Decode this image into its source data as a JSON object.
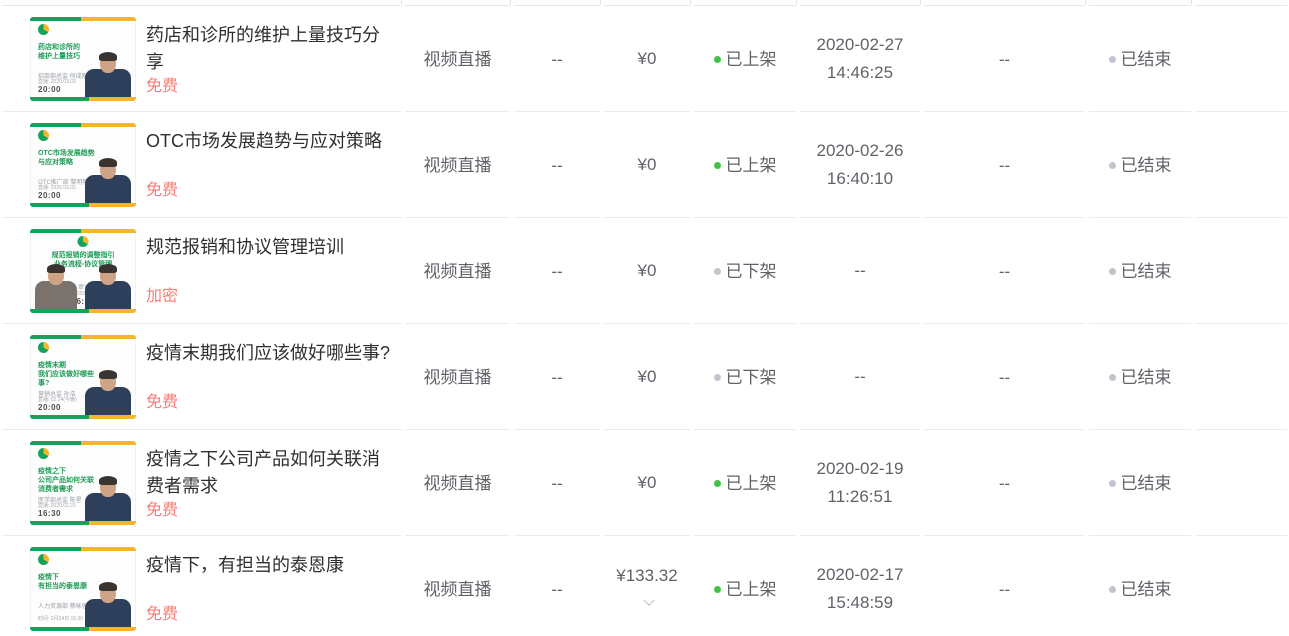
{
  "colors": {
    "accent_green": "#15a35b",
    "accent_yellow": "#f7b52c",
    "status_on_green": "#41c341",
    "status_off_gray": "#c0c4cc",
    "access_label_red": "#f97c78",
    "title_text": "#2f2f2f",
    "body_text": "#5f6368",
    "divider": "#ececec"
  },
  "table": {
    "rows": [
      {
        "thumbnail": {
          "title_lines": [
            "药店和诊所的",
            "维护上量技巧"
          ],
          "subtitle": "招商部总监 何成刚",
          "footer": "直播: 2020.03.03",
          "time": "20:00",
          "logo_position": "left",
          "persons": [
            "right"
          ]
        },
        "title": "药店和诊所的维护上量技巧分享",
        "access_label": "免费",
        "course_type": "视频直播",
        "placeholder_1": "--",
        "price": "¥0",
        "price_expandable": false,
        "shelf_status": {
          "label": "已上架",
          "state": "on"
        },
        "shelf_time_lines": [
          "2020-02-27",
          "14:46:25"
        ],
        "placeholder_2": "--",
        "end_status": {
          "label": "已结束",
          "state": "off"
        }
      },
      {
        "thumbnail": {
          "title_lines": [
            "OTC市场发展趋势",
            "与应对策略"
          ],
          "subtitle": "OTC推广部 黎明明",
          "footer": "直播: 2020.03.02",
          "time": "20:00",
          "logo_position": "left",
          "persons": [
            "right"
          ]
        },
        "title": "OTC市场发展趋势与应对策略",
        "access_label": "免费",
        "course_type": "视频直播",
        "placeholder_1": "--",
        "price": "¥0",
        "price_expandable": false,
        "shelf_status": {
          "label": "已上架",
          "state": "on"
        },
        "shelf_time_lines": [
          "2020-02-26",
          "16:40:10"
        ],
        "placeholder_2": "--",
        "end_status": {
          "label": "已结束",
          "state": "off"
        }
      },
      {
        "thumbnail": {
          "title_lines": [
            "规范报销的调整指引",
            "业务流程-协议管理"
          ],
          "subtitle": "财务部·审计管理部",
          "footer": "直播: 2020.02.27",
          "time": "16:30",
          "logo_position": "center",
          "persons": [
            "left",
            "right"
          ]
        },
        "title": "规范报销和协议管理培训",
        "access_label": "加密",
        "course_type": "视频直播",
        "placeholder_1": "--",
        "price": "¥0",
        "price_expandable": false,
        "shelf_status": {
          "label": "已下架",
          "state": "off"
        },
        "shelf_time_lines": [
          "--"
        ],
        "placeholder_2": "--",
        "end_status": {
          "label": "已结束",
          "state": "off"
        }
      },
      {
        "thumbnail": {
          "title_lines": [
            "疫情末期",
            "我们应该做好哪些事?"
          ],
          "subtitle": "营销总监 孙浩",
          "footer": "直播: 02.24(今晚)",
          "time": "20:00",
          "logo_position": "left",
          "persons": [
            "right"
          ]
        },
        "title": "疫情末期我们应该做好哪些事?",
        "access_label": "免费",
        "course_type": "视频直播",
        "placeholder_1": "--",
        "price": "¥0",
        "price_expandable": false,
        "shelf_status": {
          "label": "已下架",
          "state": "off"
        },
        "shelf_time_lines": [
          "--"
        ],
        "placeholder_2": "--",
        "end_status": {
          "label": "已结束",
          "state": "off"
        }
      },
      {
        "thumbnail": {
          "title_lines": [
            "疫情之下",
            "公司产品如何关联消费者需求"
          ],
          "subtitle": "医学部总监 陈星",
          "footer": "直播: 2020.02.21",
          "time": "16:30",
          "logo_position": "left",
          "persons": [
            "right"
          ]
        },
        "title": "疫情之下公司产品如何关联消费者需求",
        "access_label": "免费",
        "course_type": "视频直播",
        "placeholder_1": "--",
        "price": "¥0",
        "price_expandable": false,
        "shelf_status": {
          "label": "已上架",
          "state": "on"
        },
        "shelf_time_lines": [
          "2020-02-19",
          "11:26:51"
        ],
        "placeholder_2": "--",
        "end_status": {
          "label": "已结束",
          "state": "off"
        }
      },
      {
        "thumbnail": {
          "title_lines": [
            "疫情下",
            "有担当的泰恩康"
          ],
          "subtitle": "人力资源部 蔡咏强",
          "footer": "时间: 2月24日 16:30",
          "time": "",
          "logo_position": "left",
          "persons": [
            "right"
          ]
        },
        "title": "疫情下，有担当的泰恩康",
        "access_label": "免费",
        "course_type": "视频直播",
        "placeholder_1": "--",
        "price": "¥133.32",
        "price_expandable": true,
        "shelf_status": {
          "label": "已上架",
          "state": "on"
        },
        "shelf_time_lines": [
          "2020-02-17",
          "15:48:59"
        ],
        "placeholder_2": "--",
        "end_status": {
          "label": "已结束",
          "state": "off"
        }
      }
    ]
  }
}
